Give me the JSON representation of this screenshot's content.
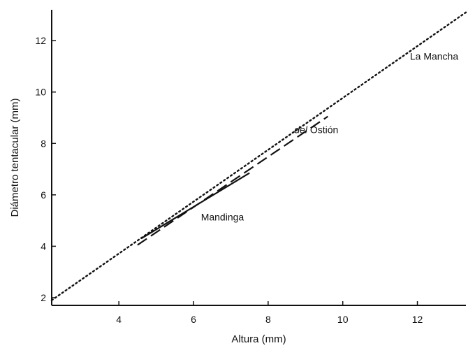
{
  "chart_data": {
    "type": "line",
    "title": "",
    "xlabel": "Altura (mm)",
    "ylabel": "Diámetro tentacular (mm)",
    "xlim": [
      2.2,
      13.3
    ],
    "ylim": [
      1.7,
      13.2
    ],
    "xticks": [
      4,
      6,
      8,
      10,
      12
    ],
    "yticks": [
      2,
      4,
      6,
      8,
      10,
      12
    ],
    "grid": false,
    "legend": "none",
    "series": [
      {
        "label_prefix": "",
        "label_main": "La Mancha",
        "style": "dotted",
        "color": "#111111",
        "x": [
          2.2,
          13.3
        ],
        "y": [
          1.9,
          13.1
        ],
        "label_at": [
          11.8,
          11.25
        ]
      },
      {
        "label_prefix": "del",
        "label_main": "Ostión",
        "style": "dashed",
        "color": "#111111",
        "x": [
          4.5,
          9.6
        ],
        "y": [
          4.05,
          9.05
        ],
        "label_at": [
          8.7,
          8.4
        ]
      },
      {
        "label_prefix": "",
        "label_main": "Mandinga",
        "style": "solid",
        "color": "#111111",
        "x": [
          4.6,
          7.5
        ],
        "y": [
          4.3,
          6.85
        ],
        "label_at": [
          6.2,
          5.0
        ]
      }
    ]
  }
}
